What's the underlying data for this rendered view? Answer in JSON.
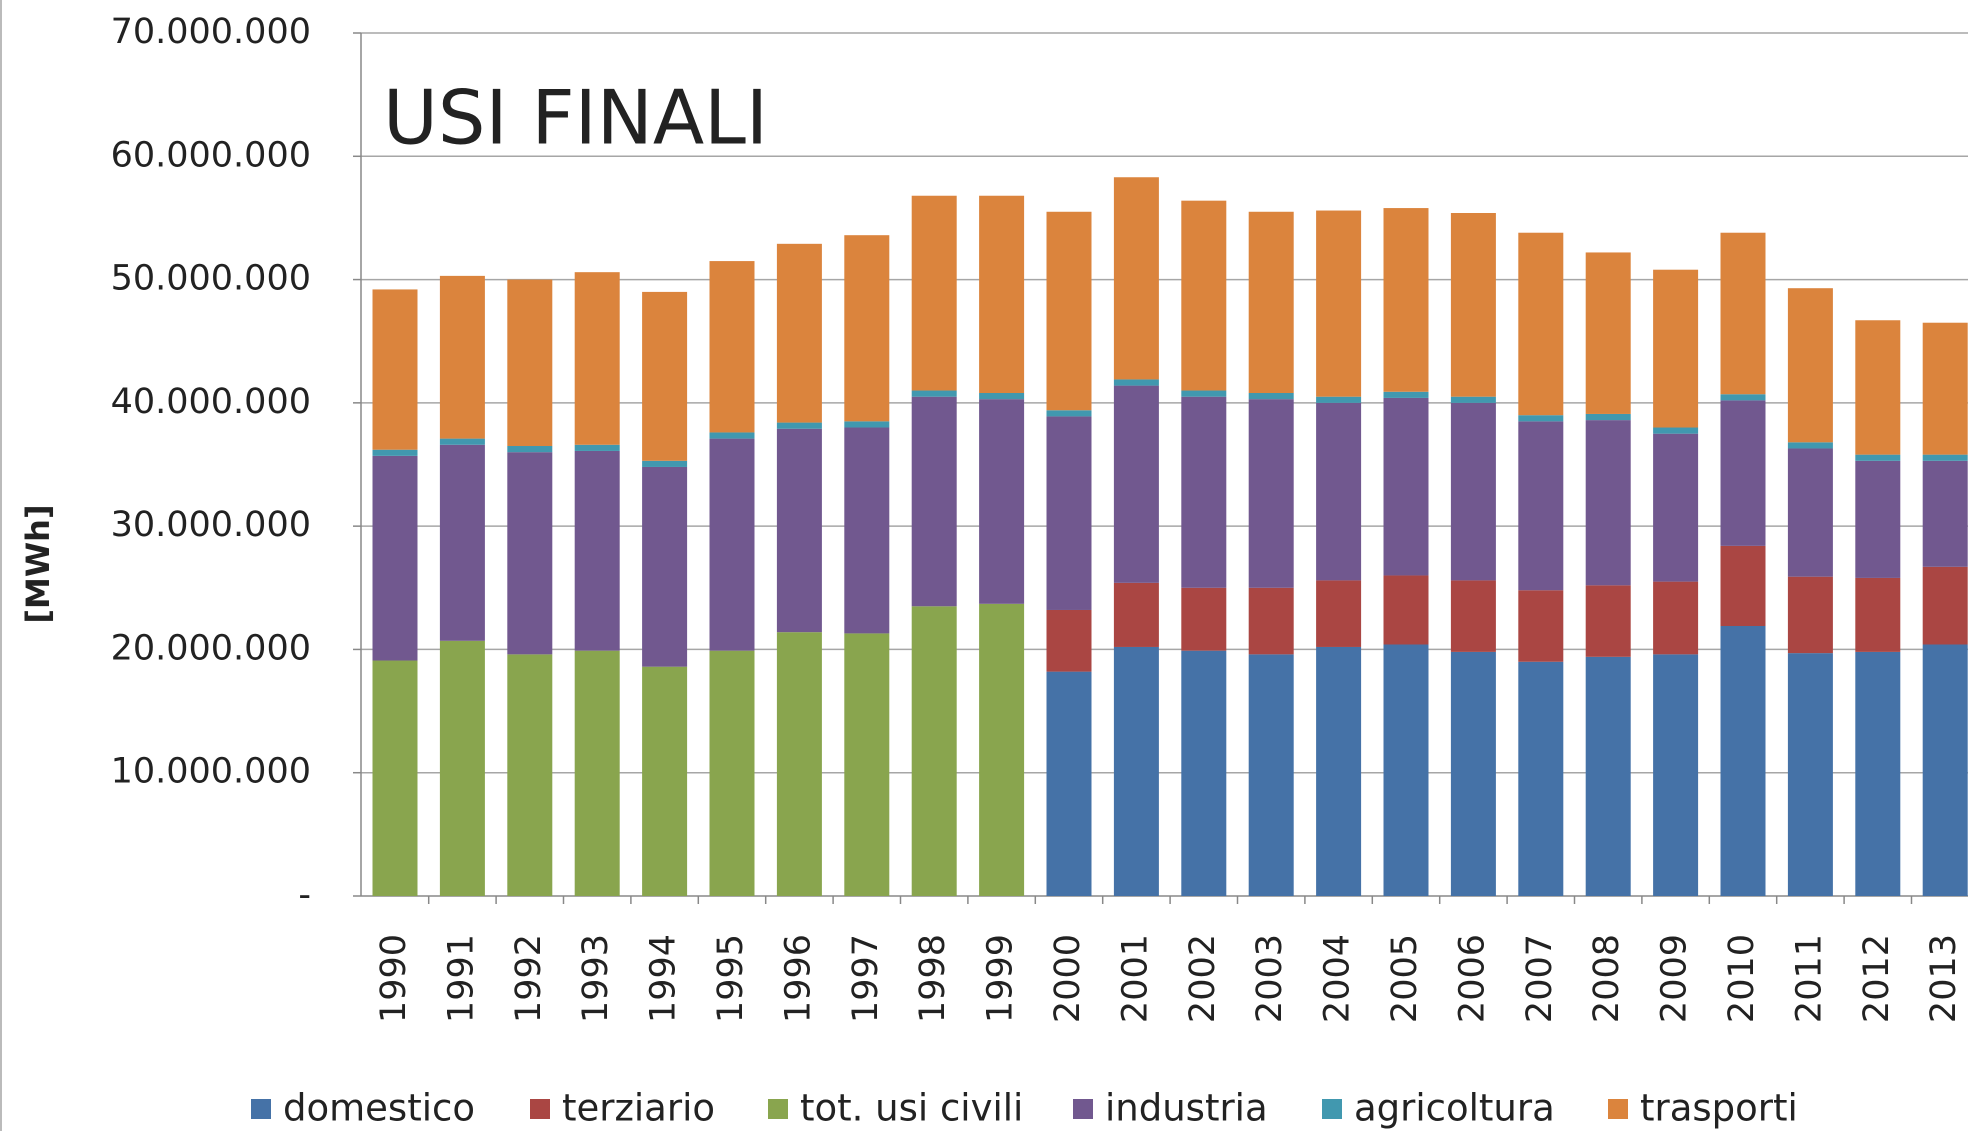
{
  "chart_data": {
    "type": "stacked_bar",
    "title": "USI FINALI",
    "y_label": "[MWh]",
    "categories": [
      "1990",
      "1991",
      "1992",
      "1993",
      "1994",
      "1995",
      "1996",
      "1997",
      "1998",
      "1999",
      "2000",
      "2001",
      "2002",
      "2003",
      "2004",
      "2005",
      "2006",
      "2007",
      "2008",
      "2009",
      "2010",
      "2011",
      "2012",
      "2013"
    ],
    "series": [
      {
        "name": "domestico",
        "color": "#4572a7",
        "values": [
          null,
          null,
          null,
          null,
          null,
          null,
          null,
          null,
          null,
          null,
          18200000,
          20200000,
          19900000,
          19600000,
          20200000,
          20400000,
          19800000,
          19000000,
          19400000,
          19600000,
          21900000,
          19700000,
          19800000,
          20400000
        ]
      },
      {
        "name": "terziario",
        "color": "#aa4643",
        "values": [
          null,
          null,
          null,
          null,
          null,
          null,
          null,
          null,
          null,
          null,
          5000000,
          5200000,
          5100000,
          5400000,
          5400000,
          5600000,
          5800000,
          5800000,
          5800000,
          5900000,
          6500000,
          6200000,
          6000000,
          6300000
        ]
      },
      {
        "name": "tot. usi civili",
        "color": "#89a54e",
        "values": [
          19100000,
          20700000,
          19600000,
          19900000,
          18600000,
          19900000,
          21400000,
          21300000,
          23500000,
          23700000,
          null,
          null,
          null,
          null,
          null,
          null,
          null,
          null,
          null,
          null,
          null,
          null,
          null,
          null
        ]
      },
      {
        "name": "industria",
        "color": "#71588f",
        "values": [
          16600000,
          15900000,
          16400000,
          16200000,
          16200000,
          17200000,
          16500000,
          16700000,
          17000000,
          16600000,
          15700000,
          16000000,
          15500000,
          15300000,
          14400000,
          14400000,
          14400000,
          13700000,
          13400000,
          12000000,
          11800000,
          10400000,
          9500000,
          8600000
        ]
      },
      {
        "name": "agricoltura",
        "color": "#4198af",
        "values": [
          500000,
          500000,
          500000,
          500000,
          500000,
          500000,
          500000,
          500000,
          500000,
          500000,
          500000,
          500000,
          500000,
          500000,
          500000,
          500000,
          500000,
          500000,
          500000,
          500000,
          500000,
          500000,
          500000,
          500000
        ]
      },
      {
        "name": "trasporti",
        "color": "#db843d",
        "values": [
          13000000,
          13200000,
          13500000,
          14000000,
          13700000,
          13900000,
          14500000,
          15100000,
          15800000,
          16000000,
          16100000,
          16400000,
          15400000,
          14700000,
          15100000,
          14900000,
          14900000,
          14800000,
          13100000,
          12800000,
          13100000,
          12500000,
          10900000,
          10700000
        ]
      }
    ],
    "ylim": [
      0,
      70000000
    ],
    "yticks": [
      {
        "value": 0,
        "label": "-"
      },
      {
        "value": 10000000,
        "label": "10.000.000"
      },
      {
        "value": 20000000,
        "label": "20.000.000"
      },
      {
        "value": 30000000,
        "label": "30.000.000"
      },
      {
        "value": 40000000,
        "label": "40.000.000"
      },
      {
        "value": 50000000,
        "label": "50.000.000"
      },
      {
        "value": 60000000,
        "label": "60.000.000"
      },
      {
        "value": 70000000,
        "label": "70.000.000"
      }
    ],
    "grid": true,
    "legend": "bottom"
  }
}
